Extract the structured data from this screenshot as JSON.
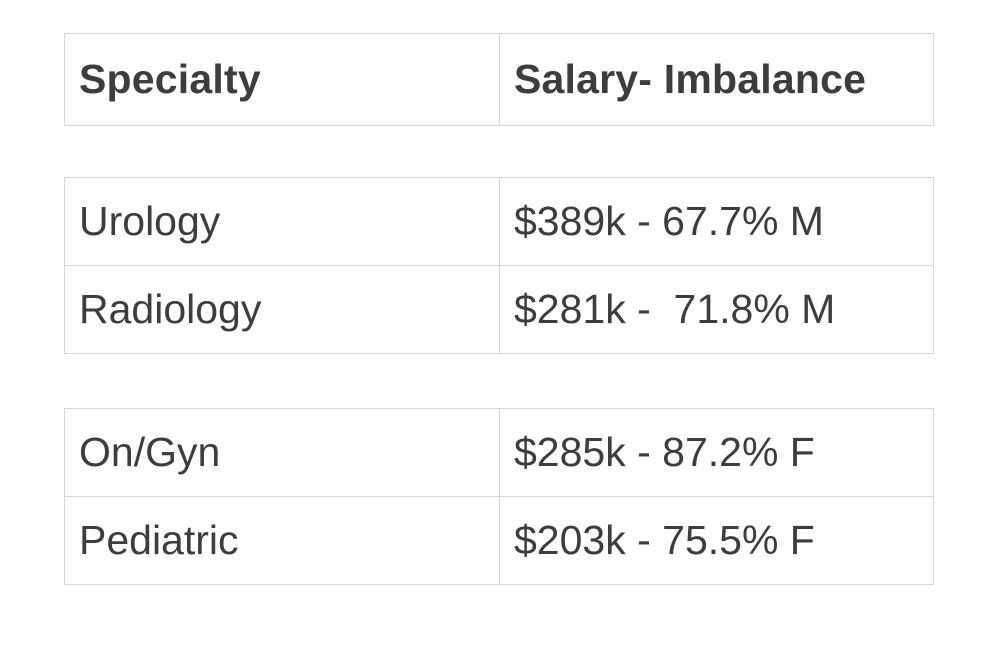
{
  "table": {
    "headers": [
      "Specialty",
      "Salary- Imbalance"
    ],
    "groups": [
      {
        "rows": [
          {
            "specialty": "Urology",
            "salary_imbalance": "$389k - 67.7% M"
          },
          {
            "specialty": "Radiology",
            "salary_imbalance": "$281k -  71.8% M"
          }
        ]
      },
      {
        "rows": [
          {
            "specialty": "On/Gyn",
            "salary_imbalance": "$285k - 87.2% F"
          },
          {
            "specialty": "Pediatric",
            "salary_imbalance": "$203k - 75.5% F"
          }
        ]
      }
    ]
  }
}
